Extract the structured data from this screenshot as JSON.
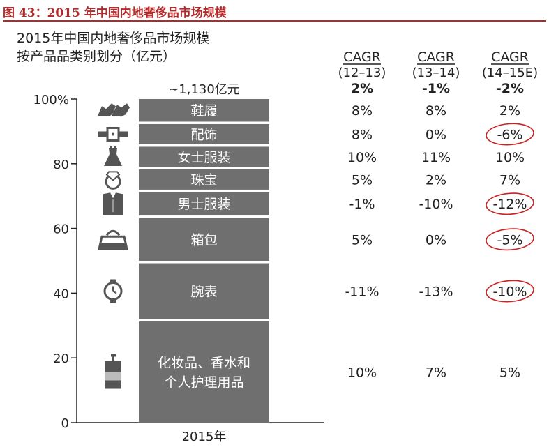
{
  "figure_title": "图 43：2015 年中国内地奢侈品市场规模",
  "chart_data": {
    "type": "bar",
    "title": "2015年中国内地奢侈品市场规模",
    "subtitle": "按产品品类别划分（亿元）",
    "categories": [
      "2015年"
    ],
    "total_label": "~1,130亿元",
    "ylim": [
      0,
      100
    ],
    "yticks": [
      {
        "value": 0,
        "label": "0"
      },
      {
        "value": 20,
        "label": "20"
      },
      {
        "value": 40,
        "label": "40"
      },
      {
        "value": 60,
        "label": "60"
      },
      {
        "value": 80,
        "label": "80"
      },
      {
        "value": 100,
        "label": "100%"
      }
    ],
    "series": [
      {
        "name": "化妆品、香水和个人护理用品",
        "label_lines": [
          "化妆品、香水和",
          "个人护理用品"
        ],
        "icon": "cosmetics-bottle-icon",
        "value": 32
      },
      {
        "name": "腕表",
        "label_lines": [
          "腕表"
        ],
        "icon": "watch-icon",
        "value": 18
      },
      {
        "name": "箱包",
        "label_lines": [
          "箱包"
        ],
        "icon": "handbag-icon",
        "value": 14
      },
      {
        "name": "男士服装",
        "label_lines": [
          "男士服装"
        ],
        "icon": "men-suit-icon",
        "value": 8
      },
      {
        "name": "珠宝",
        "label_lines": [
          "珠宝"
        ],
        "icon": "ring-icon",
        "value": 7
      },
      {
        "name": "女士服装",
        "label_lines": [
          "女士服装"
        ],
        "icon": "dress-icon",
        "value": 7
      },
      {
        "name": "配饰",
        "label_lines": [
          "配饰"
        ],
        "icon": "belt-icon",
        "value": 7
      },
      {
        "name": "鞋履",
        "label_lines": [
          "鞋履"
        ],
        "icon": "shoes-icon",
        "value": 7
      }
    ],
    "cagr_columns": [
      {
        "title": "CAGR",
        "period": "(12–13)",
        "total": "2%"
      },
      {
        "title": "CAGR",
        "period": "(13–14)",
        "total": "-1%"
      },
      {
        "title": "CAGR",
        "period": "(14–15E)",
        "total": "-2%"
      }
    ],
    "cagr_rows": [
      {
        "values": [
          "10%",
          "7%",
          "5%"
        ],
        "circled": [
          false,
          false,
          false
        ]
      },
      {
        "values": [
          "-11%",
          "-13%",
          "-10%"
        ],
        "circled": [
          false,
          false,
          true
        ]
      },
      {
        "values": [
          "5%",
          "0%",
          "-5%"
        ],
        "circled": [
          false,
          false,
          true
        ]
      },
      {
        "values": [
          "-1%",
          "-10%",
          "-12%"
        ],
        "circled": [
          false,
          false,
          true
        ]
      },
      {
        "values": [
          "5%",
          "2%",
          "7%"
        ],
        "circled": [
          false,
          false,
          false
        ]
      },
      {
        "values": [
          "10%",
          "11%",
          "10%"
        ],
        "circled": [
          false,
          false,
          false
        ]
      },
      {
        "values": [
          "8%",
          "0%",
          "-6%"
        ],
        "circled": [
          false,
          false,
          true
        ]
      },
      {
        "values": [
          "8%",
          "8%",
          "2%"
        ],
        "circled": [
          false,
          false,
          false
        ]
      }
    ],
    "colors": {
      "bar": "#6f6f6f",
      "bar_text": "#ffffff",
      "icon": "#555555",
      "circle": "#cc2222",
      "title": "#b22a2a"
    }
  }
}
